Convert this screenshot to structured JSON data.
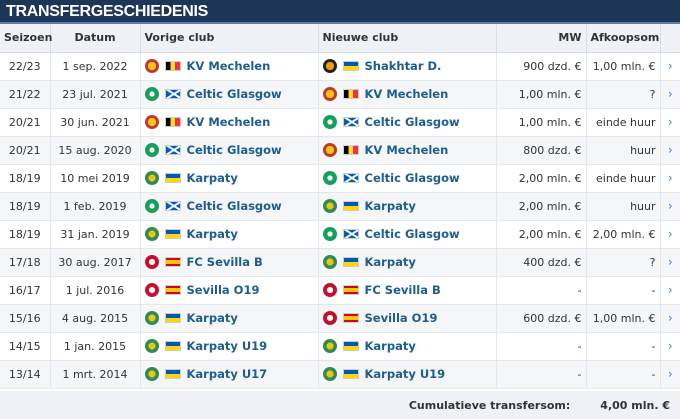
{
  "title": "TRANSFERGESCHIEDENIS",
  "headers": {
    "season": "Seizoen",
    "date": "Datum",
    "from": "Vorige club",
    "to": "Nieuwe club",
    "mv": "MW",
    "fee": "Afkoopsom"
  },
  "rows": [
    {
      "season": "22/23",
      "date": "1 sep. 2022",
      "from": {
        "name": "KV Mechelen",
        "crest": "mechelen",
        "flag": "be"
      },
      "to": {
        "name": "Shakhtar D.",
        "crest": "shakhtar",
        "flag": "ua"
      },
      "mv": "900 dzd. €",
      "fee": "1,00 mln. €",
      "arrow": "›"
    },
    {
      "season": "21/22",
      "date": "23 jul. 2021",
      "from": {
        "name": "Celtic Glasgow",
        "crest": "celtic",
        "flag": "sc"
      },
      "to": {
        "name": "KV Mechelen",
        "crest": "mechelen",
        "flag": "be"
      },
      "mv": "1,00 mln. €",
      "fee": "?",
      "arrow": "›"
    },
    {
      "season": "20/21",
      "date": "30 jun. 2021",
      "from": {
        "name": "KV Mechelen",
        "crest": "mechelen",
        "flag": "be"
      },
      "to": {
        "name": "Celtic Glasgow",
        "crest": "celtic",
        "flag": "sc"
      },
      "mv": "1,00 mln. €",
      "fee": "einde huur",
      "arrow": "›"
    },
    {
      "season": "20/21",
      "date": "15 aug. 2020",
      "from": {
        "name": "Celtic Glasgow",
        "crest": "celtic",
        "flag": "sc"
      },
      "to": {
        "name": "KV Mechelen",
        "crest": "mechelen",
        "flag": "be"
      },
      "mv": "800 dzd. €",
      "fee": "huur",
      "arrow": "›"
    },
    {
      "season": "18/19",
      "date": "10 mei 2019",
      "from": {
        "name": "Karpaty",
        "crest": "karpaty",
        "flag": "ua"
      },
      "to": {
        "name": "Celtic Glasgow",
        "crest": "celtic",
        "flag": "sc"
      },
      "mv": "2,00 mln. €",
      "fee": "einde huur",
      "arrow": "›"
    },
    {
      "season": "18/19",
      "date": "1 feb. 2019",
      "from": {
        "name": "Celtic Glasgow",
        "crest": "celtic",
        "flag": "sc"
      },
      "to": {
        "name": "Karpaty",
        "crest": "karpaty",
        "flag": "ua"
      },
      "mv": "2,00 mln. €",
      "fee": "huur",
      "arrow": "›"
    },
    {
      "season": "18/19",
      "date": "31 jan. 2019",
      "from": {
        "name": "Karpaty",
        "crest": "karpaty",
        "flag": "ua"
      },
      "to": {
        "name": "Celtic Glasgow",
        "crest": "celtic",
        "flag": "sc"
      },
      "mv": "2,00 mln. €",
      "fee": "2,00 mln. €",
      "arrow": "›"
    },
    {
      "season": "17/18",
      "date": "30 aug. 2017",
      "from": {
        "name": "FC Sevilla B",
        "crest": "sevilla",
        "flag": "es"
      },
      "to": {
        "name": "Karpaty",
        "crest": "karpaty",
        "flag": "ua"
      },
      "mv": "400 dzd. €",
      "fee": "?",
      "arrow": "›"
    },
    {
      "season": "16/17",
      "date": "1 jul. 2016",
      "from": {
        "name": "Sevilla O19",
        "crest": "sevilla",
        "flag": "es"
      },
      "to": {
        "name": "FC Sevilla B",
        "crest": "sevilla",
        "flag": "es"
      },
      "mv": "-",
      "fee": "-",
      "arrow": "›"
    },
    {
      "season": "15/16",
      "date": "4 aug. 2015",
      "from": {
        "name": "Karpaty",
        "crest": "karpaty",
        "flag": "ua"
      },
      "to": {
        "name": "Sevilla O19",
        "crest": "sevilla",
        "flag": "es"
      },
      "mv": "600 dzd. €",
      "fee": "1,00 mln. €",
      "arrow": "›"
    },
    {
      "season": "14/15",
      "date": "1 jan. 2015",
      "from": {
        "name": "Karpaty U19",
        "crest": "karpaty",
        "flag": "ua"
      },
      "to": {
        "name": "Karpaty",
        "crest": "karpaty",
        "flag": "ua"
      },
      "mv": "-",
      "fee": "-",
      "arrow": "›"
    },
    {
      "season": "13/14",
      "date": "1 mrt. 2014",
      "from": {
        "name": "Karpaty U17",
        "crest": "karpaty",
        "flag": "ua"
      },
      "to": {
        "name": "Karpaty U19",
        "crest": "karpaty",
        "flag": "ua"
      },
      "mv": "-",
      "fee": "-",
      "arrow": "›"
    }
  ],
  "footer": {
    "label": "Cumulatieve transfersom:",
    "value": "4,00 mln. €"
  },
  "colors": {
    "title_bg": "#1d3557",
    "link": "#1d5d8f",
    "arrow": "#4a7fd1"
  }
}
